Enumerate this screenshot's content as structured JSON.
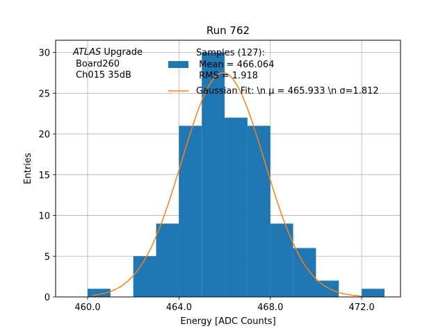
{
  "chart_data": {
    "type": "bar",
    "title": "Run 762",
    "xlabel": "Energy [ADC Counts]",
    "ylabel": "Entries",
    "xlim": [
      458.6,
      473.7
    ],
    "ylim": [
      0,
      31.5
    ],
    "grid": true,
    "xticks": [
      460.0,
      464.0,
      468.0,
      472.0
    ],
    "xtick_labels": [
      "460.0",
      "464.0",
      "468.0",
      "472.0"
    ],
    "yticks": [
      0,
      5,
      10,
      15,
      20,
      25,
      30
    ],
    "ytick_labels": [
      "0",
      "5",
      "10",
      "15",
      "20",
      "25",
      "30"
    ],
    "bins": [
      {
        "x0": 460,
        "x1": 461,
        "count": 1
      },
      {
        "x0": 461,
        "x1": 462,
        "count": 0
      },
      {
        "x0": 462,
        "x1": 463,
        "count": 5
      },
      {
        "x0": 463,
        "x1": 464,
        "count": 9
      },
      {
        "x0": 464,
        "x1": 465,
        "count": 21
      },
      {
        "x0": 465,
        "x1": 466,
        "count": 30
      },
      {
        "x0": 466,
        "x1": 467,
        "count": 22
      },
      {
        "x0": 467,
        "x1": 468,
        "count": 21
      },
      {
        "x0": 468,
        "x1": 469,
        "count": 9
      },
      {
        "x0": 469,
        "x1": 470,
        "count": 6
      },
      {
        "x0": 470,
        "x1": 471,
        "count": 2
      },
      {
        "x0": 471,
        "x1": 472,
        "count": 0
      },
      {
        "x0": 472,
        "x1": 473,
        "count": 1
      }
    ],
    "fit": {
      "type": "gaussian",
      "mu": 465.933,
      "sigma": 1.812,
      "amplitude": 27.5,
      "x_range": [
        460.2,
        472.0
      ]
    },
    "annotation": {
      "italic_part": "ATLAS",
      "line1_rest": " Upgrade",
      "line2": "Board260",
      "line3": "Ch015 35dB"
    },
    "legend": {
      "location": "top-right",
      "hist_label_lines": [
        "Samples (127):",
        " Mean = 466.064",
        " RMS = 1.918"
      ],
      "fit_label": "Gaussian Fit: \\n μ = 465.933 \\n σ=1.812"
    },
    "colors": {
      "bar": "#1f77b4",
      "fit": "#ff7f0e",
      "grid": "#b0b0b0",
      "axis": "#000000"
    }
  }
}
